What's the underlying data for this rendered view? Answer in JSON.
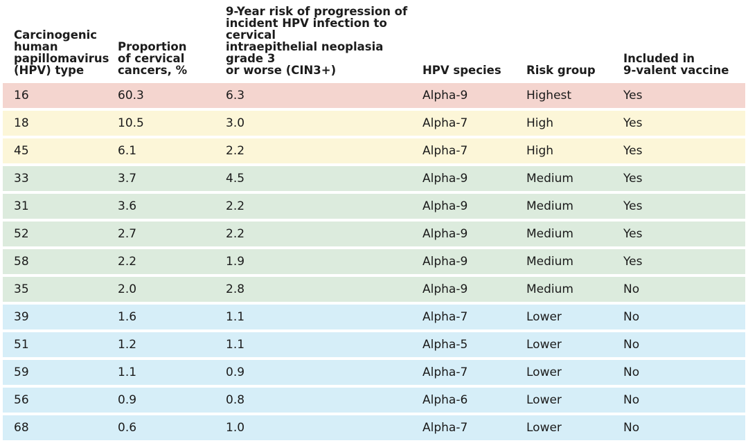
{
  "headers": [
    "Carcinogenic\nhuman\npapillomavirus\n(HPV) type",
    "Proportion\nof cervical\ncancers, %",
    "9-Year risk of progression of\nincident HPV infection to cervical\nintraepithelial neoplasia grade 3\nor worse (CIN3+)",
    "HPV species",
    "Risk group",
    "Included in\n9-valent vaccine"
  ],
  "row_colors": {
    "Highest": "#f4d5cf",
    "High": "#fcf6d8",
    "Medium": "#dcebdd",
    "Lower": "#d6eef8"
  },
  "rows": [
    [
      "16",
      "60.3",
      "6.3",
      "Alpha-9",
      "Highest",
      "Yes"
    ],
    [
      "18",
      "10.5",
      "3.0",
      "Alpha-7",
      "High",
      "Yes"
    ],
    [
      "45",
      "6.1",
      "2.2",
      "Alpha-7",
      "High",
      "Yes"
    ],
    [
      "33",
      "3.7",
      "4.5",
      "Alpha-9",
      "Medium",
      "Yes"
    ],
    [
      "31",
      "3.6",
      "2.2",
      "Alpha-9",
      "Medium",
      "Yes"
    ],
    [
      "52",
      "2.7",
      "2.2",
      "Alpha-9",
      "Medium",
      "Yes"
    ],
    [
      "58",
      "2.2",
      "1.9",
      "Alpha-9",
      "Medium",
      "Yes"
    ],
    [
      "35",
      "2.0",
      "2.8",
      "Alpha-9",
      "Medium",
      "No"
    ],
    [
      "39",
      "1.6",
      "1.1",
      "Alpha-7",
      "Lower",
      "No"
    ],
    [
      "51",
      "1.2",
      "1.1",
      "Alpha-5",
      "Lower",
      "No"
    ],
    [
      "59",
      "1.1",
      "0.9",
      "Alpha-7",
      "Lower",
      "No"
    ],
    [
      "56",
      "0.9",
      "0.8",
      "Alpha-6",
      "Lower",
      "No"
    ],
    [
      "68",
      "0.6",
      "1.0",
      "Alpha-7",
      "Lower",
      "No"
    ]
  ]
}
